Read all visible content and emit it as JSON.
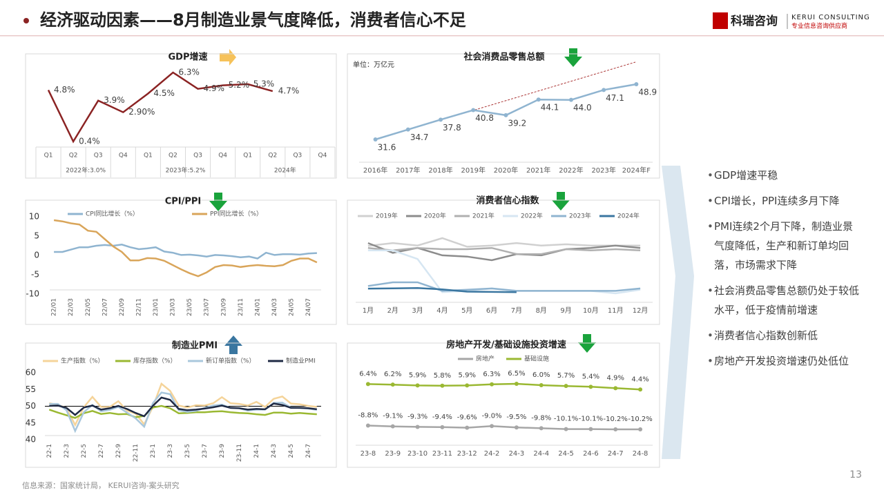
{
  "header": {
    "title": "经济驱动因素——8月制造业景气度降低，消费者信心不足",
    "logo_cn": "科瑞咨询",
    "logo_en": "KERUI CONSULTING",
    "logo_sub": "专业信息咨询供应商"
  },
  "chart_data": [
    {
      "type": "line",
      "title": "GDP增速",
      "categories": [
        "Q1",
        "Q2",
        "Q3",
        "Q4",
        "Q1",
        "Q2",
        "Q3",
        "Q4",
        "Q1",
        "Q2",
        "Q3",
        "Q4"
      ],
      "groups": [
        "2022年:3.0%",
        "2023年:5.2%",
        "2024年"
      ],
      "values": [
        4.8,
        0.4,
        3.9,
        2.9,
        4.5,
        6.3,
        4.9,
        5.2,
        5.3,
        4.7,
        null,
        null
      ],
      "value_labels": [
        "4.8%",
        "0.4%",
        "3.9%",
        "2.90%",
        "4.5%",
        "6.3%",
        "4.9%",
        "5.2%",
        "5.3%",
        "4.7%",
        null,
        null
      ],
      "color": "#8b2323",
      "markers": false
    },
    {
      "type": "line",
      "title": "社会消费品零售总额",
      "unit": "单位：万亿元",
      "categories": [
        "2016年",
        "2017年",
        "2018年",
        "2019年",
        "2020年",
        "2021年",
        "2022年",
        "2023年",
        "2024年F"
      ],
      "values": [
        31.6,
        34.7,
        37.8,
        40.8,
        39.2,
        44.1,
        44.0,
        47.1,
        48.9
      ],
      "value_labels": [
        "31.6",
        "34.7",
        "37.8",
        "40.8",
        "39.2",
        "44.1",
        "44.0",
        "47.1",
        "48.9"
      ],
      "color": "#8fb4d0",
      "markers": true,
      "trendline": true
    },
    {
      "type": "line",
      "title": "CPI/PPI",
      "categories": [
        "22/01",
        null,
        "22/03",
        null,
        "22/05",
        null,
        "22/07",
        null,
        "22/09",
        null,
        "22/11",
        null,
        "23/01",
        null,
        "23/03",
        null,
        "23/05",
        null,
        "23/07",
        null,
        "23/09",
        null,
        "23/11",
        null,
        "24/01",
        null,
        "24/03",
        null,
        "24/05",
        null,
        "24/07",
        null
      ],
      "ylim": [
        -10,
        10
      ],
      "yticks": [
        10,
        5,
        0,
        -5,
        -10
      ],
      "series": [
        {
          "name": "CPI同比增长（%）",
          "color": "#8fb4d0",
          "values": [
            0.9,
            0.9,
            1.5,
            2.1,
            2.1,
            2.5,
            2.7,
            2.5,
            2.8,
            2.1,
            1.6,
            1.8,
            2.1,
            1.0,
            0.7,
            0.1,
            0.2,
            0,
            -0.3,
            0.1,
            0,
            -0.2,
            -0.5,
            -0.3,
            -0.8,
            0.7,
            0.1,
            0.3,
            0.3,
            0.2,
            0.5,
            0.6
          ]
        },
        {
          "name": "PPI同比增长（%）",
          "color": "#d9a55a",
          "values": [
            9.1,
            8.8,
            8.3,
            8.0,
            6.4,
            6.1,
            4.2,
            2.3,
            0.9,
            -1.3,
            -1.3,
            -0.7,
            -0.8,
            -1.4,
            -2.5,
            -3.6,
            -4.6,
            -5.4,
            -4.4,
            -3.0,
            -2.5,
            -2.6,
            -3.0,
            -2.7,
            -2.5,
            -2.7,
            -2.8,
            -2.5,
            -1.4,
            -0.8,
            -0.8,
            -1.8
          ]
        }
      ]
    },
    {
      "type": "line",
      "title": "消费者信心指数",
      "categories": [
        "1月",
        "2月",
        "3月",
        "4月",
        "5月",
        "6月",
        "7月",
        "8月",
        "9月",
        "10月",
        "11月",
        "12月"
      ],
      "series": [
        {
          "name": "2019年",
          "color": "#d0d0d0",
          "values": [
            123.7,
            126,
            124,
            130,
            123,
            124,
            126,
            124,
            125,
            124,
            124,
            124
          ]
        },
        {
          "name": "2020年",
          "color": "#8c8c8c",
          "values": [
            126,
            118,
            122,
            116,
            115,
            112,
            117,
            116,
            121,
            122,
            124,
            122
          ]
        },
        {
          "name": "2021年",
          "color": "#b0b0b0",
          "values": [
            122,
            120,
            122,
            121,
            121,
            122,
            117,
            117,
            121,
            120,
            121,
            120
          ]
        },
        {
          "name": "2022年",
          "color": "#d6e6f2",
          "values": [
            120,
            120,
            113,
            86,
            87,
            89,
            87,
            87,
            87,
            87,
            85,
            88
          ]
        },
        {
          "name": "2023年",
          "color": "#8fb4d0",
          "values": [
            91,
            94,
            94,
            87,
            88,
            89,
            87,
            87,
            87,
            87,
            87,
            89
          ]
        },
        {
          "name": "2024年",
          "color": "#3a76a0",
          "values": [
            88.9,
            89.1,
            89.4,
            88.2,
            86.4,
            86.2,
            86.0,
            null,
            null,
            null,
            null,
            null
          ]
        }
      ]
    },
    {
      "type": "line",
      "title": "制造业PMI",
      "categories": [
        "22-1",
        null,
        "22-3",
        null,
        "22-5",
        null,
        "22-7",
        null,
        "22-9",
        null,
        "22-11",
        null,
        "23-1",
        null,
        "23-3",
        null,
        "23-5",
        null,
        "23-7",
        null,
        "23-9",
        null,
        "23-11",
        null,
        "24-1",
        null,
        "24-3",
        null,
        "24-5",
        null,
        "24-7",
        null
      ],
      "ylim": [
        40,
        60
      ],
      "yticks": [
        40,
        45,
        50,
        55,
        60
      ],
      "hline": 50,
      "series": [
        {
          "name": "生产指数（%）",
          "color": "#f5d49a",
          "values": [
            50.9,
            50.4,
            49.5,
            44.4,
            49.7,
            52.8,
            49.8,
            49.8,
            51.5,
            48.7,
            47.8,
            44.6,
            49.8,
            56.7,
            54.6,
            50.2,
            49.6,
            50.3,
            50.2,
            50.9,
            52.7,
            50.9,
            50.7,
            50.2,
            51.3,
            49.8,
            52.2,
            52.9,
            50.8,
            50.6,
            50.1,
            49.8
          ]
        },
        {
          "name": "库存指数（%）",
          "color": "#9ab832",
          "values": [
            49.0,
            48.1,
            47.3,
            46.5,
            47.9,
            48.6,
            47.7,
            48.0,
            47.6,
            47.7,
            46.7,
            47.1,
            49.6,
            50.1,
            49.4,
            47.9,
            48.0,
            48.2,
            48.2,
            48.4,
            48.5,
            48.2,
            48.0,
            47.9,
            47.6,
            47.4,
            48.1,
            48.1,
            47.8,
            48.0,
            47.8,
            47.6
          ]
        },
        {
          "name": "新订单指数（%）",
          "color": "#a9c7dc",
          "values": [
            50.7,
            50.7,
            48.8,
            42.6,
            48.2,
            50.4,
            48.5,
            48.9,
            49.8,
            48.1,
            46.4,
            43.9,
            50.9,
            54.1,
            53.6,
            48.8,
            48.3,
            48.6,
            49.5,
            50.2,
            50.5,
            49.5,
            49.4,
            48.7,
            49.0,
            49.0,
            51.0,
            51.1,
            49.6,
            49.5,
            49.3,
            48.9
          ]
        },
        {
          "name": "制造业PMI",
          "color": "#1f2a44",
          "values": [
            50.1,
            50.2,
            49.5,
            47.4,
            49.6,
            50.2,
            49.0,
            49.4,
            50.1,
            49.2,
            48.0,
            47.0,
            50.1,
            52.6,
            51.9,
            49.2,
            48.8,
            49.0,
            49.3,
            49.7,
            50.2,
            49.5,
            49.4,
            49.0,
            49.2,
            49.1,
            50.8,
            50.4,
            49.5,
            49.5,
            49.4,
            49.1
          ]
        }
      ]
    },
    {
      "type": "line",
      "title": "房地产开发/基础设施投资增速",
      "categories": [
        "23-8",
        "23-9",
        "23-10",
        "23-11",
        "23-12",
        "24-2",
        "24-3",
        "24-4",
        "24-5",
        "24-6",
        "24-7",
        "24-8"
      ],
      "markers": true,
      "series": [
        {
          "name": "房地产",
          "color": "#a6a6a6",
          "values": [
            -8.8,
            -9.1,
            -9.3,
            -9.4,
            -9.6,
            -9.0,
            -9.5,
            -9.8,
            -10.1,
            -10.1,
            -10.2,
            -10.2
          ],
          "value_labels": [
            "-8.8%",
            "-9.1%",
            "-9.3%",
            "-9.4%",
            "-9.6%",
            "-9.0%",
            "-9.5%",
            "-9.8%",
            "-10.1%",
            "-10.1%",
            "-10.2%",
            "-10.2%"
          ]
        },
        {
          "name": "基础设施",
          "color": "#9ab832",
          "values": [
            6.4,
            6.2,
            5.9,
            5.8,
            5.9,
            6.3,
            6.5,
            6.0,
            5.7,
            5.4,
            4.9,
            4.4
          ],
          "value_labels": [
            "6.4%",
            "6.2%",
            "5.9%",
            "5.8%",
            "5.9%",
            "6.3%",
            "6.5%",
            "6.0%",
            "5.7%",
            "5.4%",
            "4.9%",
            "4.4%"
          ]
        }
      ]
    }
  ],
  "bullets": [
    "GDP增速平稳",
    "CPI增长，PPI连续多月下降",
    "PMI连续2个月下降，制造业景气度降低，生产和新订单均回落，市场需求下降",
    "社会消费品零售总额仍处于较低水平，低于疫情前增速",
    "消费者信心指数创新低",
    "房地产开发投资增速仍处低位"
  ],
  "source": "信息来源：国家统计局， KERUI咨询-案头研究",
  "page_number": "13"
}
